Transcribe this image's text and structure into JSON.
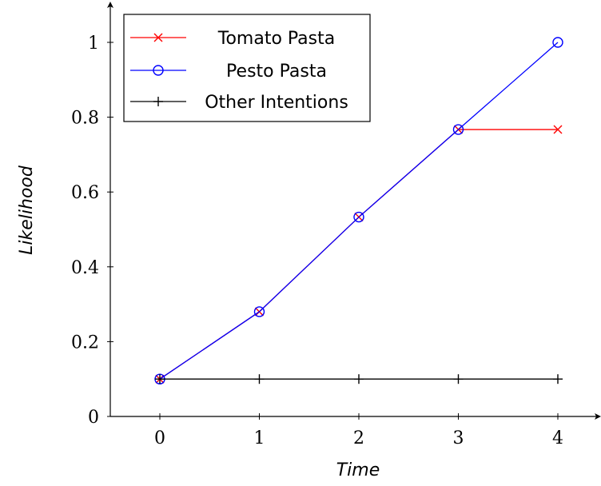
{
  "chart_data": {
    "type": "line",
    "title": "",
    "xlabel": "Time",
    "ylabel": "Likelihood",
    "x": [
      0,
      1,
      2,
      3,
      4
    ],
    "xlim": [
      -0.5,
      4.5
    ],
    "ylim": [
      0,
      1.1
    ],
    "xticks": [
      "0",
      "1",
      "2",
      "3",
      "4"
    ],
    "yticks": [
      0,
      0.2,
      0.4,
      0.6,
      0.8,
      1
    ],
    "ytick_labels": [
      "0",
      "0.2",
      "0.4",
      "0.6",
      "0.8",
      "1"
    ],
    "grid": false,
    "legend_position": "top-left",
    "series": [
      {
        "name": "Tomato Pasta",
        "values": [
          0.1,
          0.28,
          0.533,
          0.767,
          0.767
        ],
        "color": "#ff0000",
        "marker": "x"
      },
      {
        "name": "Pesto Pasta",
        "values": [
          0.1,
          0.28,
          0.533,
          0.767,
          1.0
        ],
        "color": "#0000ff",
        "marker": "circle"
      },
      {
        "name": "Other Intentions",
        "values": [
          0.1,
          0.1,
          0.1,
          0.1,
          0.1
        ],
        "color": "#000000",
        "marker": "plus"
      }
    ]
  }
}
